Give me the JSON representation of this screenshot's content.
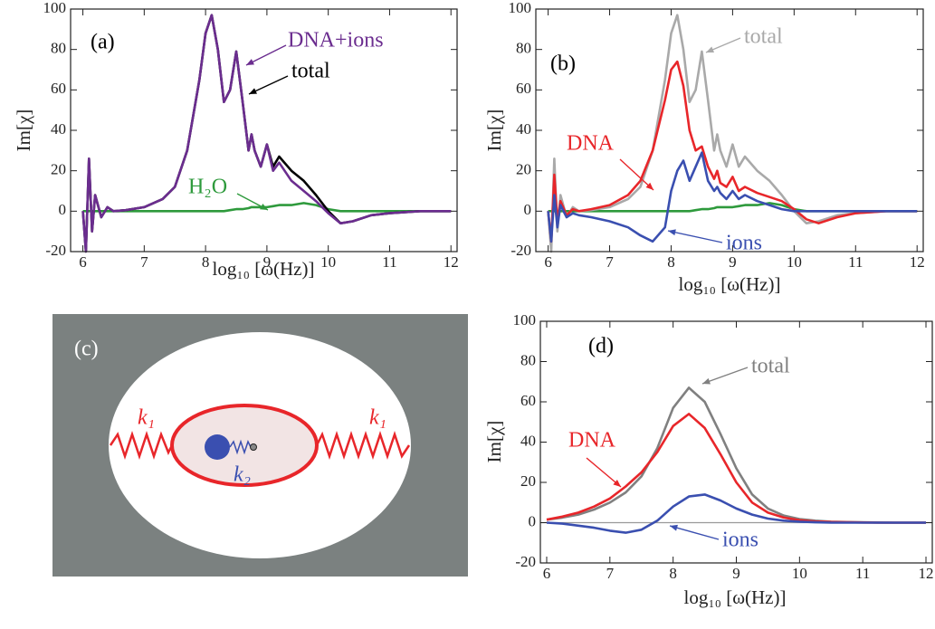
{
  "chart_data": [
    {
      "type": "line",
      "panel": "(a)",
      "xlabel": "log₁₀ [ω(Hz)]",
      "ylabel": "Im[χ]",
      "xlim": [
        5.8,
        12.1
      ],
      "ylim": [
        -20,
        100
      ],
      "xticks": [
        6,
        7,
        8,
        9,
        10,
        11,
        12
      ],
      "yticks": [
        -20,
        0,
        20,
        40,
        60,
        80,
        100
      ],
      "x": [
        6.0,
        6.05,
        6.1,
        6.15,
        6.2,
        6.3,
        6.4,
        6.5,
        6.7,
        7.0,
        7.3,
        7.5,
        7.7,
        7.9,
        8.0,
        8.1,
        8.2,
        8.3,
        8.4,
        8.5,
        8.6,
        8.7,
        8.75,
        8.8,
        8.9,
        9.0,
        9.1,
        9.2,
        9.4,
        9.6,
        9.8,
        10.0,
        10.2,
        10.4,
        10.7,
        11.0,
        11.5,
        12.0
      ],
      "series": [
        {
          "name": "H₂O",
          "color": "#2e9a3c",
          "values": [
            0,
            0,
            0,
            0,
            0,
            0,
            0,
            0,
            0,
            0,
            0,
            0,
            0,
            0,
            0,
            0,
            0,
            0,
            0.5,
            1,
            1,
            1.5,
            2,
            2,
            2,
            2,
            2.5,
            3,
            3,
            4,
            3,
            1,
            0,
            0,
            0,
            0,
            0,
            0
          ]
        },
        {
          "name": "total",
          "color": "#000000",
          "values": [
            0,
            -20,
            26,
            -10,
            8,
            -3,
            2,
            0,
            0.5,
            2,
            6,
            12,
            30,
            65,
            88,
            97,
            80,
            54,
            60,
            79,
            55,
            30,
            38,
            30,
            22,
            33,
            22,
            27,
            20,
            15,
            8,
            0,
            -6,
            -5,
            -2,
            -1,
            0,
            0
          ]
        },
        {
          "name": "DNA+ions",
          "color": "#6b2d8f",
          "values": [
            0,
            -20,
            26,
            -10,
            8,
            -3,
            2,
            0,
            0.5,
            2,
            6,
            12,
            30,
            65,
            88,
            97,
            80,
            54,
            60,
            79,
            55,
            30,
            38,
            30,
            22,
            33,
            20,
            24,
            15,
            10,
            5,
            -1,
            -6,
            -5,
            -2,
            -1,
            0,
            0
          ]
        }
      ],
      "annotations": [
        {
          "text": "(a)",
          "color": "#000000"
        },
        {
          "text": "DNA+ions",
          "color": "#6b2d8f"
        },
        {
          "text": "total",
          "color": "#000000"
        },
        {
          "text": "H₂O",
          "color": "#2e9a3c"
        }
      ]
    },
    {
      "type": "line",
      "panel": "(b)",
      "xlabel": "log₁₀ [ω(Hz)]",
      "ylabel": "Im[χ]",
      "xlim": [
        5.8,
        12.1
      ],
      "ylim": [
        -20,
        100
      ],
      "xticks": [
        6,
        7,
        8,
        9,
        10,
        11,
        12
      ],
      "yticks": [
        -20,
        0,
        20,
        40,
        60,
        80,
        100
      ],
      "x": [
        6.0,
        6.05,
        6.1,
        6.15,
        6.2,
        6.3,
        6.4,
        6.5,
        6.7,
        7.0,
        7.3,
        7.5,
        7.7,
        7.9,
        8.0,
        8.1,
        8.2,
        8.3,
        8.4,
        8.5,
        8.6,
        8.7,
        8.75,
        8.8,
        8.9,
        9.0,
        9.1,
        9.2,
        9.4,
        9.6,
        9.8,
        10.0,
        10.2,
        10.4,
        10.7,
        11.0,
        11.5,
        12.0
      ],
      "series": [
        {
          "color": "#2e9a3c",
          "values": [
            0,
            0,
            0,
            0,
            0,
            0,
            0,
            0,
            0,
            0,
            0,
            0,
            0,
            0,
            0,
            0,
            0,
            0,
            0.5,
            1,
            1,
            1.5,
            2,
            2,
            2,
            2,
            2.5,
            3,
            3,
            4,
            3,
            1,
            0,
            0,
            0,
            0,
            0,
            0
          ]
        },
        {
          "name": "total",
          "color": "#a9a9a9",
          "values": [
            0,
            -20,
            26,
            -10,
            8,
            -3,
            2,
            0,
            0.5,
            2,
            6,
            12,
            30,
            65,
            88,
            97,
            80,
            54,
            60,
            79,
            55,
            30,
            38,
            30,
            22,
            33,
            22,
            27,
            20,
            15,
            8,
            0,
            -6,
            -5,
            -2,
            -1,
            0,
            0
          ]
        },
        {
          "name": "DNA",
          "color": "#e8262a",
          "values": [
            0,
            -15,
            18,
            -5,
            5,
            -2,
            1,
            0,
            1,
            3,
            8,
            15,
            30,
            55,
            70,
            74,
            62,
            40,
            30,
            32,
            22,
            16,
            20,
            14,
            12,
            17,
            10,
            12,
            9,
            7,
            5,
            1,
            -4,
            -6,
            -3,
            -1,
            0,
            0
          ]
        },
        {
          "name": "ions",
          "color": "#3a4fb0",
          "values": [
            0,
            -15,
            8,
            -8,
            3,
            -3,
            -1,
            -2,
            -3,
            -5,
            -8,
            -12,
            -15,
            -8,
            10,
            20,
            25,
            15,
            22,
            29,
            15,
            10,
            12,
            9,
            6,
            10,
            6,
            8,
            5,
            3,
            1,
            0,
            0,
            0,
            0,
            0,
            0,
            0
          ]
        }
      ],
      "annotations": [
        {
          "text": "(b)",
          "color": "#000000"
        },
        {
          "text": "total",
          "color": "#a9a9a9"
        },
        {
          "text": "DNA",
          "color": "#e8262a"
        },
        {
          "text": "ions",
          "color": "#3a4fb0"
        }
      ]
    },
    {
      "type": "line",
      "panel": "(d)",
      "zero_line": true,
      "xlabel": "log₁₀ [ω(Hz)]",
      "ylabel": "Im[χ]",
      "xlim": [
        5.9,
        12.1
      ],
      "ylim": [
        -20,
        100
      ],
      "xticks": [
        6,
        7,
        8,
        9,
        10,
        11,
        12
      ],
      "yticks": [
        -20,
        0,
        20,
        40,
        60,
        80,
        100
      ],
      "x": [
        6,
        6.25,
        6.5,
        6.75,
        7,
        7.25,
        7.5,
        7.75,
        8,
        8.25,
        8.5,
        8.75,
        9,
        9.25,
        9.5,
        9.75,
        10,
        10.25,
        10.5,
        10.75,
        11,
        11.25,
        11.5,
        11.75,
        12
      ],
      "series": [
        {
          "name": "total",
          "color": "#808080",
          "values": [
            1.5,
            2.5,
            4,
            6.5,
            10,
            15,
            23,
            37,
            57,
            67,
            60,
            44,
            27,
            14,
            7,
            3.5,
            1.8,
            1,
            0.5,
            0.3,
            0.2,
            0.1,
            0,
            0,
            0
          ]
        },
        {
          "name": "DNA",
          "color": "#e8262a",
          "values": [
            1.5,
            3,
            5,
            8,
            12,
            18,
            25,
            35,
            48,
            54,
            47,
            34,
            20,
            10,
            5,
            2.5,
            1.2,
            0.6,
            0.3,
            0.2,
            0.1,
            0,
            0,
            0,
            0
          ]
        },
        {
          "name": "ions",
          "color": "#3a4fb0",
          "values": [
            0,
            -0.5,
            -1.5,
            -2.5,
            -4,
            -5,
            -3.5,
            1,
            8,
            13,
            14,
            11,
            7,
            4,
            2,
            1,
            0.5,
            0.2,
            0,
            0,
            0,
            0,
            0,
            0,
            0
          ]
        }
      ],
      "annotations": [
        {
          "text": "(d)",
          "color": "#000000"
        },
        {
          "text": "total",
          "color": "#808080"
        },
        {
          "text": "DNA",
          "color": "#e8262a"
        },
        {
          "text": "ions",
          "color": "#3a4fb0"
        }
      ]
    }
  ],
  "diagram": {
    "label": "(c)",
    "outer_spring_left": "k₁",
    "outer_spring_right": "k₁",
    "inner_spring": "k₂"
  }
}
